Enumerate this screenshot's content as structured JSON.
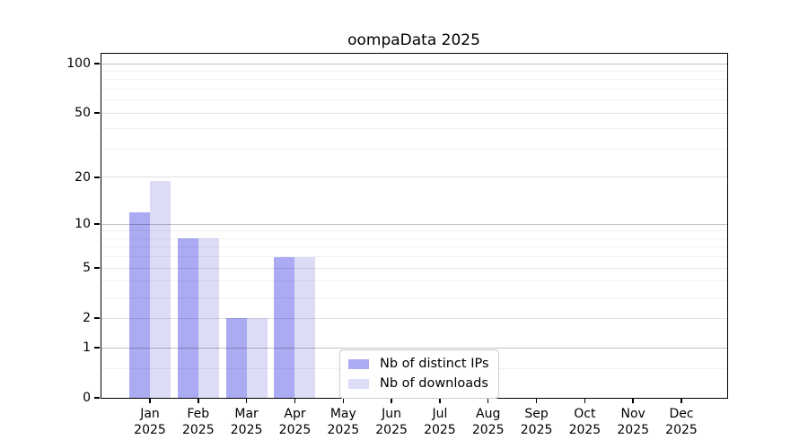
{
  "figure": {
    "title": "oompaData 2025"
  },
  "chart_data": {
    "type": "bar",
    "title": "oompaData 2025",
    "y_scale": "log1p",
    "grid": true,
    "categories": [
      "Jan",
      "Feb",
      "Mar",
      "Apr",
      "May",
      "Jun",
      "Jul",
      "Aug",
      "Sep",
      "Oct",
      "Nov",
      "Dec"
    ],
    "category_sublabel": "2025",
    "series": [
      {
        "name": "Nb of distinct IPs",
        "color": "#ababf3",
        "values": [
          12,
          8,
          2,
          6,
          0,
          0,
          0,
          0,
          0,
          0,
          0,
          0
        ]
      },
      {
        "name": "Nb of downloads",
        "color": "#dcdcf7",
        "values": [
          19,
          8,
          2,
          6,
          0,
          0,
          0,
          0,
          0,
          0,
          0,
          0
        ]
      }
    ],
    "y_ticks": [
      0,
      1,
      2,
      5,
      10,
      20,
      50,
      100
    ],
    "ylim": [
      0,
      113
    ],
    "gridlines": {
      "major": [
        1,
        10,
        100
      ],
      "mid": [
        2,
        5,
        20,
        50
      ],
      "minor": [
        0.5,
        3,
        4,
        6,
        7,
        8,
        9,
        30,
        40,
        60,
        70,
        80,
        90
      ]
    },
    "legend_position": "inside-bottom-center"
  },
  "colors": {
    "axis": "#000000",
    "background": "#ffffff",
    "legend_border": "#cccccc",
    "grid_major": "#c2c2c2",
    "grid_mid": "#e2e2e2",
    "grid_minor": "#f1f1f1"
  }
}
